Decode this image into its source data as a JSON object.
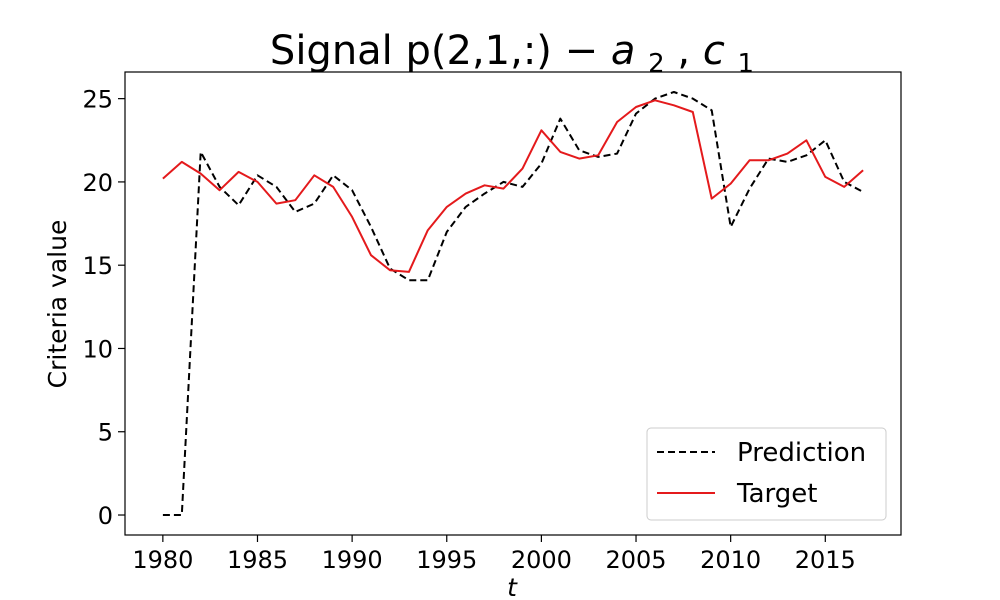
{
  "chart_data": {
    "type": "line",
    "title": "Signal p(2,1,:) −",
    "title_math": {
      "a": "a",
      "a_sub": "2",
      "sep": ", ",
      "c": "c",
      "c_sub": "1"
    },
    "xlabel": "t",
    "ylabel": "Criteria value",
    "xlim": [
      1978,
      2019
    ],
    "ylim": [
      -1.2,
      26.6
    ],
    "xticks": [
      1980,
      1985,
      1990,
      1995,
      2000,
      2005,
      2010,
      2015
    ],
    "yticks": [
      0,
      5,
      10,
      15,
      20,
      25
    ],
    "grid": false,
    "legend_position": "bottom-right",
    "x": [
      1980,
      1981,
      1982,
      1983,
      1984,
      1985,
      1986,
      1987,
      1988,
      1989,
      1990,
      1991,
      1992,
      1993,
      1994,
      1995,
      1996,
      1997,
      1998,
      1999,
      2000,
      2001,
      2002,
      2003,
      2004,
      2005,
      2006,
      2007,
      2008,
      2009,
      2010,
      2011,
      2012,
      2013,
      2014,
      2015,
      2016,
      2017
    ],
    "series": [
      {
        "name": "Prediction",
        "color": "#000000",
        "style": "dashed",
        "values": [
          0.0,
          0.0,
          21.8,
          19.7,
          18.6,
          20.4,
          19.7,
          18.2,
          18.7,
          20.4,
          19.5,
          17.3,
          14.8,
          14.1,
          14.1,
          17.0,
          18.5,
          19.3,
          20.0,
          19.7,
          21.1,
          23.8,
          21.9,
          21.5,
          21.7,
          24.1,
          25.0,
          25.4,
          25.0,
          24.3,
          17.3,
          19.6,
          21.4,
          21.2,
          21.6,
          22.5,
          20.0,
          19.4
        ]
      },
      {
        "name": "Target",
        "color": "#e41a1c",
        "style": "solid",
        "values": [
          20.2,
          21.2,
          20.5,
          19.5,
          20.6,
          20.0,
          18.7,
          18.9,
          20.4,
          19.7,
          17.9,
          15.6,
          14.7,
          14.6,
          17.1,
          18.5,
          19.3,
          19.8,
          19.6,
          20.8,
          23.1,
          21.8,
          21.4,
          21.6,
          23.6,
          24.5,
          24.9,
          24.6,
          24.2,
          19.0,
          19.9,
          21.3,
          21.3,
          21.7,
          22.5,
          20.3,
          19.7,
          20.7
        ]
      }
    ]
  }
}
